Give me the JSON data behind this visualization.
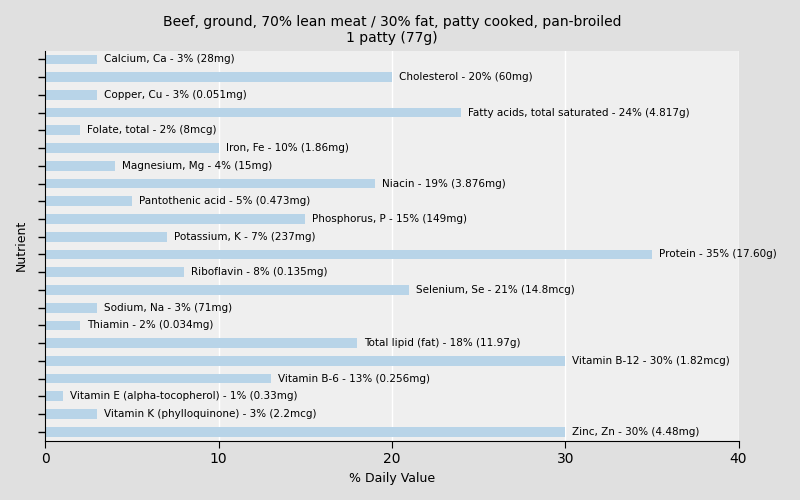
{
  "title": "Beef, ground, 70% lean meat / 30% fat, patty cooked, pan-broiled\n1 patty (77g)",
  "xlabel": "% Daily Value",
  "ylabel": "Nutrient",
  "xlim": [
    0,
    40
  ],
  "bar_color": "#b8d4e8",
  "background_color": "#e0e0e0",
  "plot_bg_color": "#efefef",
  "nutrients": [
    {
      "label": "Calcium, Ca - 3% (28mg)",
      "value": 3
    },
    {
      "label": "Cholesterol - 20% (60mg)",
      "value": 20
    },
    {
      "label": "Copper, Cu - 3% (0.051mg)",
      "value": 3
    },
    {
      "label": "Fatty acids, total saturated - 24% (4.817g)",
      "value": 24
    },
    {
      "label": "Folate, total - 2% (8mcg)",
      "value": 2
    },
    {
      "label": "Iron, Fe - 10% (1.86mg)",
      "value": 10
    },
    {
      "label": "Magnesium, Mg - 4% (15mg)",
      "value": 4
    },
    {
      "label": "Niacin - 19% (3.876mg)",
      "value": 19
    },
    {
      "label": "Pantothenic acid - 5% (0.473mg)",
      "value": 5
    },
    {
      "label": "Phosphorus, P - 15% (149mg)",
      "value": 15
    },
    {
      "label": "Potassium, K - 7% (237mg)",
      "value": 7
    },
    {
      "label": "Protein - 35% (17.60g)",
      "value": 35
    },
    {
      "label": "Riboflavin - 8% (0.135mg)",
      "value": 8
    },
    {
      "label": "Selenium, Se - 21% (14.8mcg)",
      "value": 21
    },
    {
      "label": "Sodium, Na - 3% (71mg)",
      "value": 3
    },
    {
      "label": "Thiamin - 2% (0.034mg)",
      "value": 2
    },
    {
      "label": "Total lipid (fat) - 18% (11.97g)",
      "value": 18
    },
    {
      "label": "Vitamin B-12 - 30% (1.82mcg)",
      "value": 30
    },
    {
      "label": "Vitamin B-6 - 13% (0.256mg)",
      "value": 13
    },
    {
      "label": "Vitamin E (alpha-tocopherol) - 1% (0.33mg)",
      "value": 1
    },
    {
      "label": "Vitamin K (phylloquinone) - 3% (2.2mcg)",
      "value": 3
    },
    {
      "label": "Zinc, Zn - 30% (4.48mg)",
      "value": 30
    }
  ],
  "label_fontsize": 7.5,
  "title_fontsize": 10,
  "ylabel_fontsize": 9,
  "xlabel_fontsize": 9,
  "bar_height": 0.55
}
